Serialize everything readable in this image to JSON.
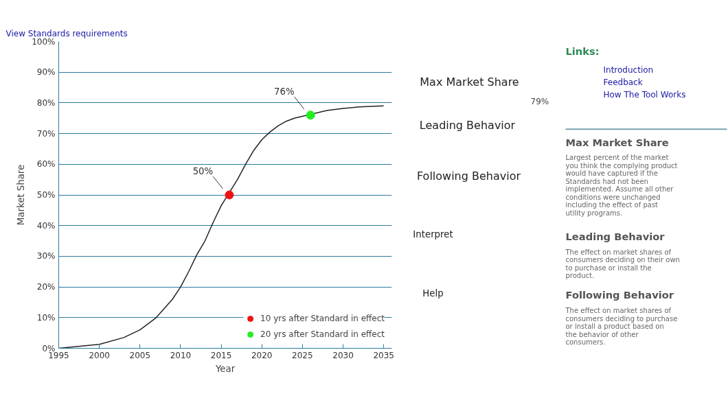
{
  "chart_data": [
    {
      "type": "line",
      "xlabel": "Year",
      "ylabel": "Market Share",
      "xlim": [
        1995,
        2036
      ],
      "ylim": [
        0,
        100
      ],
      "xticks": [
        1995,
        2000,
        2005,
        2010,
        2015,
        2020,
        2025,
        2030,
        2035
      ],
      "yticks": [
        {
          "value": 0,
          "label": "0%"
        },
        {
          "value": 10,
          "label": "10%"
        },
        {
          "value": 20,
          "label": "20%"
        },
        {
          "value": 30,
          "label": "30%"
        },
        {
          "value": 40,
          "label": "40%"
        },
        {
          "value": 50,
          "label": "50%"
        },
        {
          "value": 60,
          "label": "60%"
        },
        {
          "value": 70,
          "label": "70%"
        },
        {
          "value": 80,
          "label": "80%"
        },
        {
          "value": 90,
          "label": "90%"
        },
        {
          "value": 100,
          "label": "100%"
        }
      ],
      "grid": "y",
      "legend": "bottom right",
      "series": [
        {
          "color": "#222222",
          "x": [
            1995,
            2000,
            2003,
            2005,
            2007,
            2009,
            2010,
            2011,
            2012,
            2013,
            2014,
            2015,
            2017,
            2018,
            2019,
            2020,
            2021,
            2022,
            2023,
            2024,
            2028,
            2030,
            2032,
            2035
          ],
          "values": [
            0,
            1.3,
            3.5,
            6,
            10,
            16,
            20,
            25,
            30.5,
            35,
            41,
            46.5,
            55,
            60,
            64.5,
            68,
            70.5,
            72.5,
            74,
            75,
            77.5,
            78.2,
            78.7,
            79
          ]
        },
        {
          "type": "scatter",
          "marker": "circle",
          "name": "10 yrs after Standard in effect",
          "color": "#ee1111",
          "x": [
            2016
          ],
          "values": [
            50
          ]
        },
        {
          "type": "scatter",
          "marker": "circle",
          "name": "20 yrs after Standard in effect",
          "color": "#22ee22",
          "x": [
            2026
          ],
          "values": [
            76
          ]
        }
      ],
      "annotations": [
        "View Standards requirements",
        {
          "text": "50%",
          "x": 2016,
          "y": 50
        },
        {
          "text": "76%",
          "x": 2026,
          "y": 76
        }
      ]
    },
    {
      "type": "other",
      "annotations": [
        "Max Market Share",
        "79%",
        "Leading Behavior",
        "Following Behavior",
        "Interpret",
        "Help",
        "Links:",
        "Introduction",
        "Feedback",
        "How The Tool Works",
        "Max Market Share",
        "Largest percent of the market you think the complying product would have captured if the Standards had not been implemented. Assume all other conditions were unchanged including the effect of past utility programs.",
        "Leading Behavior",
        "The effect on market shares of consumers deciding on their own to purchase or install the product.",
        "Following Behavior",
        "The effect on market shares of consumers deciding to purchase or install a product based on the behavior of other consumers."
      ]
    }
  ]
}
